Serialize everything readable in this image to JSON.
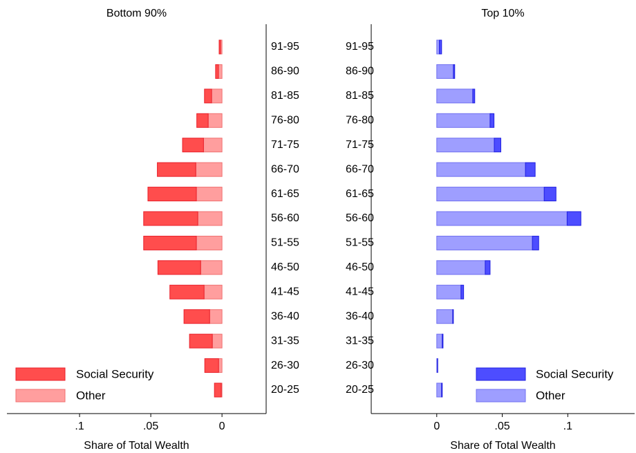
{
  "chart_data": [
    {
      "type": "bar",
      "orientation": "horizontal",
      "stacked": true,
      "title": "Bottom 90%",
      "xlabel": "Share of Total Wealth",
      "categories": [
        "91-95",
        "86-90",
        "81-85",
        "76-80",
        "71-75",
        "66-70",
        "61-65",
        "56-60",
        "51-55",
        "46-50",
        "41-45",
        "36-40",
        "31-35",
        "26-30",
        "20-25"
      ],
      "series": [
        {
          "name": "Social Security",
          "color": "#ff4d4d",
          "edge": "#e8202a",
          "values": [
            0.001,
            0.002,
            0.005,
            0.008,
            0.0147,
            0.027,
            0.034,
            0.038,
            0.037,
            0.03,
            0.024,
            0.018,
            0.016,
            0.0097,
            0.0048
          ]
        },
        {
          "name": "Other",
          "color": "#ff9e9e",
          "edge": "#f07070",
          "values": [
            0.001,
            0.0025,
            0.0073,
            0.0097,
            0.013,
            0.0184,
            0.018,
            0.017,
            0.018,
            0.015,
            0.0126,
            0.0087,
            0.0068,
            0.0024,
            0.0005
          ]
        }
      ],
      "xlim": [
        0.151,
        -0.031
      ],
      "xticks": [
        {
          "value": 0.1,
          "label": ".1"
        },
        {
          "value": 0.05,
          "label": ".05"
        },
        0
      ],
      "legend": "lower left"
    },
    {
      "type": "bar",
      "orientation": "horizontal",
      "stacked": true,
      "title": "Top 10%",
      "xlabel": "Share of Total Wealth",
      "categories": [
        "91-95",
        "86-90",
        "81-85",
        "76-80",
        "71-75",
        "66-70",
        "61-65",
        "56-60",
        "51-55",
        "46-50",
        "41-45",
        "36-40",
        "31-35",
        "26-30",
        "20-25"
      ],
      "series": [
        {
          "name": "Social Security",
          "color": "#4d4dff",
          "edge": "#2020e0",
          "values": [
            0.0017,
            0.001,
            0.0015,
            0.003,
            0.005,
            0.0074,
            0.009,
            0.0105,
            0.0048,
            0.0037,
            0.002,
            0.0005,
            0.0006,
            0.0002,
            0.0005
          ]
        },
        {
          "name": "Other",
          "color": "#9e9eff",
          "edge": "#7070f0",
          "values": [
            0.002,
            0.0127,
            0.0275,
            0.0407,
            0.0439,
            0.0677,
            0.082,
            0.0995,
            0.073,
            0.037,
            0.0185,
            0.0122,
            0.0042,
            0.0005,
            0.0037
          ]
        }
      ],
      "xlim": [
        -0.05,
        0.151
      ],
      "xticks": [
        0,
        {
          "value": 0.05,
          "label": ".05"
        },
        {
          "value": 0.1,
          "label": ".1"
        }
      ],
      "legend": "lower right"
    }
  ]
}
